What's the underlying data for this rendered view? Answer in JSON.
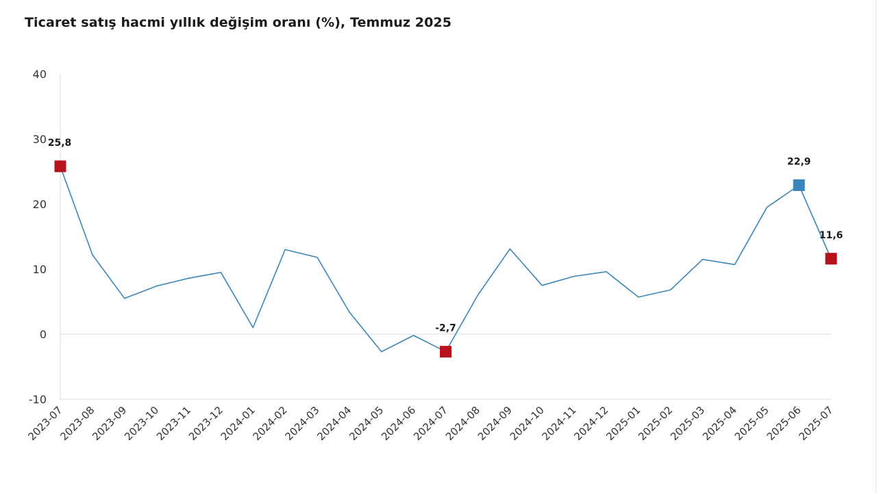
{
  "chart_data": {
    "type": "line",
    "title": "Ticaret satış hacmi yıllık değişim oranı (%), Temmuz 2025",
    "xlabel": "",
    "ylabel": "",
    "ylim": [
      -10,
      40
    ],
    "yticks": [
      -10,
      0,
      10,
      20,
      30,
      40
    ],
    "grid": false,
    "legend": "none",
    "categories": [
      "2023-07",
      "2023-08",
      "2023-09",
      "2023-10",
      "2023-11",
      "2023-12",
      "2024-01",
      "2024-02",
      "2024-03",
      "2024-04",
      "2024-05",
      "2024-06",
      "2024-07",
      "2024-08",
      "2024-09",
      "2024-10",
      "2024-11",
      "2024-12",
      "2025-01",
      "2025-02",
      "2025-03",
      "2025-04",
      "2025-05",
      "2025-06",
      "2025-07"
    ],
    "series": [
      {
        "values": [
          25.8,
          12.2,
          5.5,
          7.4,
          8.6,
          9.5,
          1.0,
          13.0,
          11.8,
          3.4,
          -2.7,
          -0.2,
          -2.7,
          6.0,
          13.1,
          7.5,
          8.9,
          9.6,
          5.7,
          6.8,
          11.5,
          10.7,
          19.5,
          22.9,
          11.6
        ],
        "color": "#3a86b8"
      }
    ],
    "highlighted_points": [
      {
        "category": "2023-07",
        "value": 25.8,
        "label": "25,8",
        "color": "#b5121b"
      },
      {
        "category": "2024-07",
        "value": -2.7,
        "label": "-2,7",
        "color": "#b5121b"
      },
      {
        "category": "2025-06",
        "value": 22.9,
        "label": "22,9",
        "color": "#3a86b8"
      },
      {
        "category": "2025-07",
        "value": 11.6,
        "label": "11,6",
        "color": "#b5121b"
      }
    ],
    "colors": {
      "line": "#3a86b8",
      "marker_red": "#b5121b",
      "marker_blue": "#3a86b8",
      "axis": "#d9d9d9",
      "text": "#1a1a1a"
    }
  }
}
